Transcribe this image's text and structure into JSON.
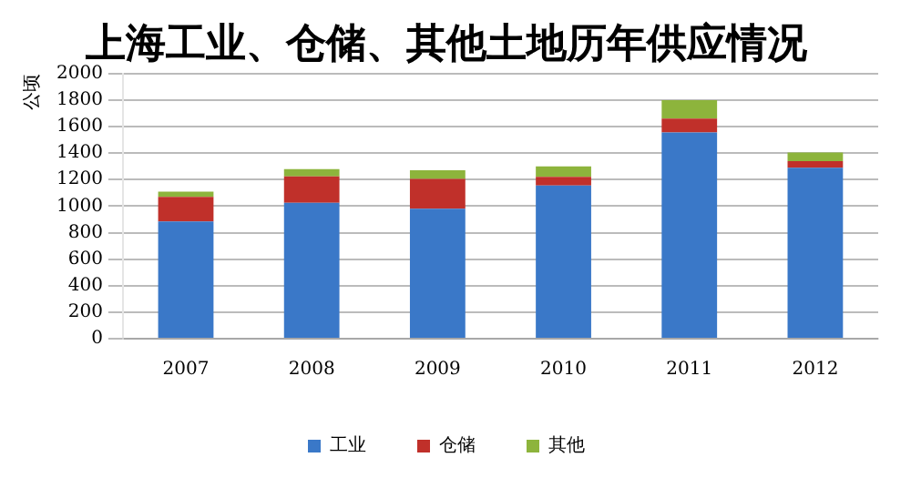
{
  "chart_data": {
    "type": "bar",
    "title": "上海工业、仓储、其他土地历年供应情况",
    "ylabel": "公顷",
    "categories": [
      "2007",
      "2008",
      "2009",
      "2010",
      "2011",
      "2012"
    ],
    "stacked": true,
    "series": [
      {
        "name": "工业",
        "color": "#3a78c8",
        "values": [
          885,
          1025,
          980,
          1155,
          1555,
          1290
        ]
      },
      {
        "name": "仓储",
        "color": "#c0302a",
        "values": [
          185,
          200,
          225,
          65,
          105,
          50
        ]
      },
      {
        "name": "其他",
        "color": "#8db43c",
        "values": [
          40,
          55,
          65,
          80,
          140,
          65
        ]
      }
    ],
    "ylim": [
      0,
      2000
    ],
    "yticks": [
      0,
      200,
      400,
      600,
      800,
      1000,
      1200,
      1400,
      1600,
      1800,
      2000
    ],
    "grid": "y",
    "legend": "bottom"
  }
}
